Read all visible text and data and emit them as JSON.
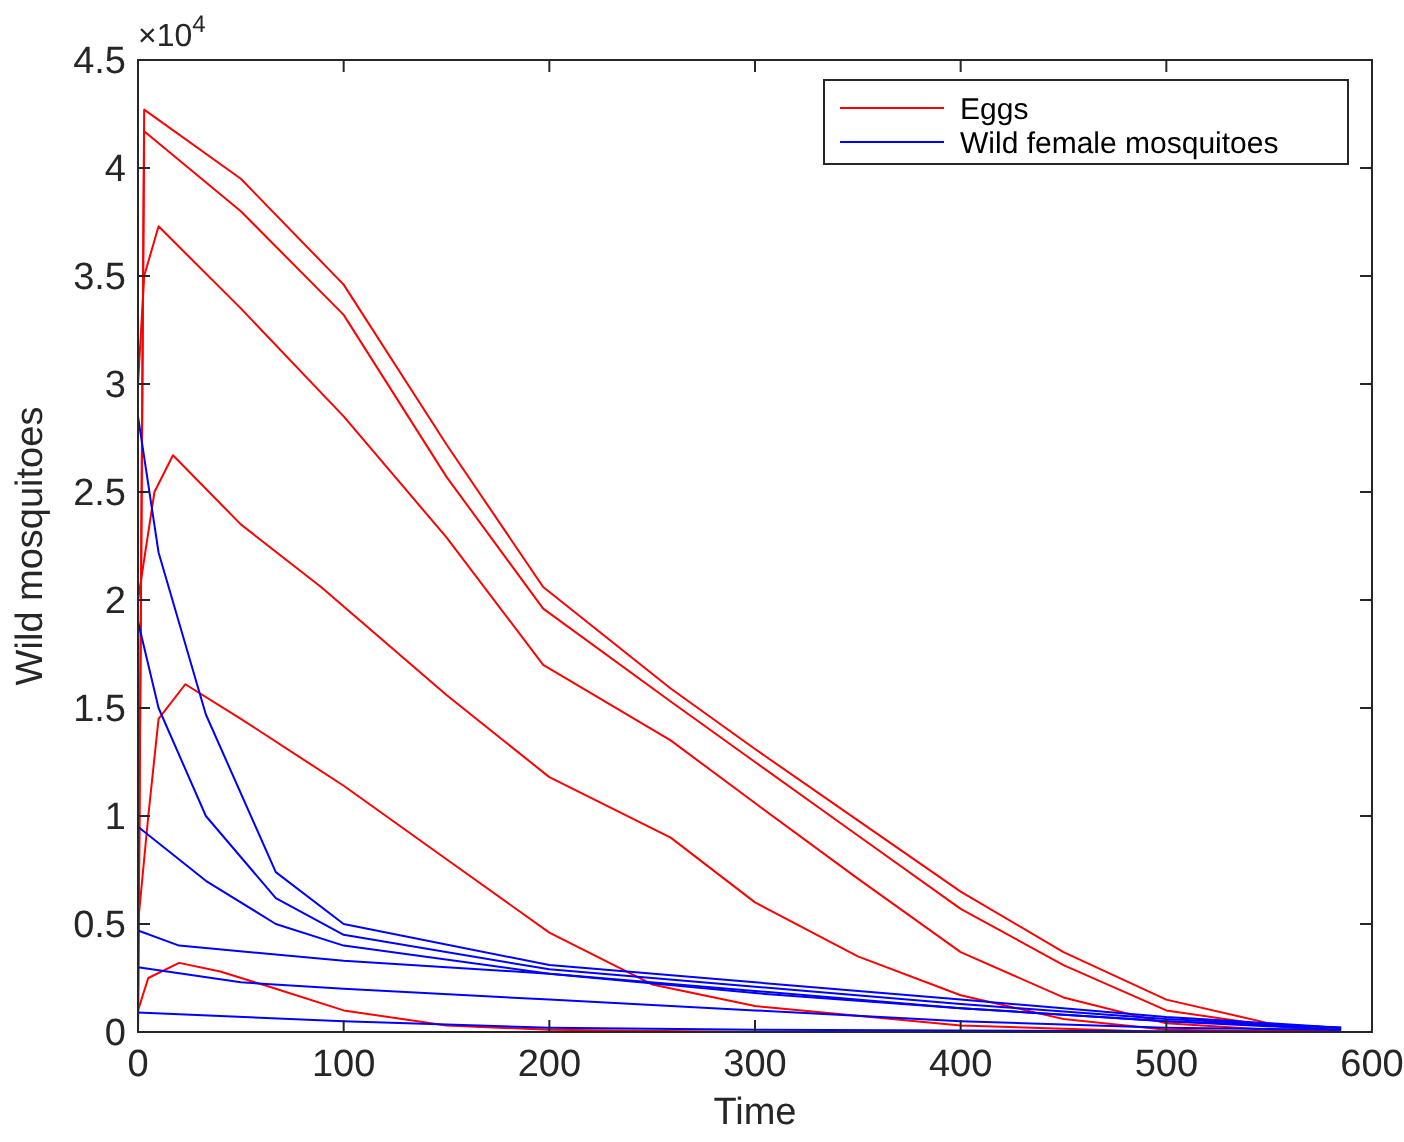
{
  "chart_data": {
    "type": "line",
    "xlabel": "Time",
    "ylabel": "Wild mosquitoes",
    "annotations": [
      "×10$^{4}$"
    ],
    "xlim": [
      0,
      600
    ],
    "xticks": [
      0,
      100,
      200,
      300,
      400,
      500,
      600
    ],
    "ylim": [
      0,
      4.5
    ],
    "yticks": [
      0,
      0.5,
      1,
      1.5,
      2,
      2.5,
      3,
      3.5,
      4,
      4.5
    ],
    "grid": false,
    "legend": "top right",
    "line_style": "solid",
    "series": [
      {
        "name": "Eggs",
        "color": "#ff0000",
        "x": [
          0,
          3,
          50,
          100,
          150,
          197,
          259,
          300,
          350,
          400,
          450,
          500,
          550,
          585
        ],
        "values": [
          0,
          4.27,
          3.95,
          3.46,
          2.72,
          2.06,
          1.59,
          1.31,
          0.98,
          0.65,
          0.37,
          0.15,
          0.04,
          0
        ]
      },
      {
        "color": "#ff0000",
        "x": [
          0,
          3,
          50,
          100,
          150,
          197,
          259,
          300,
          350,
          400,
          450,
          500,
          550,
          585
        ],
        "values": [
          0,
          4.17,
          3.8,
          3.32,
          2.57,
          1.96,
          1.53,
          1.25,
          0.91,
          0.57,
          0.31,
          0.1,
          0.03,
          0
        ]
      },
      {
        "color": "#ff0000",
        "x": [
          0,
          3,
          10,
          50,
          100,
          150,
          197,
          259,
          300,
          350,
          400,
          450,
          500,
          550,
          585
        ],
        "values": [
          3,
          3.5,
          3.73,
          3.35,
          2.85,
          2.29,
          1.7,
          1.35,
          1.06,
          0.71,
          0.37,
          0.16,
          0.04,
          0.01,
          0
        ]
      },
      {
        "color": "#ff0000",
        "x": [
          0,
          8,
          17,
          50,
          89,
          150,
          200,
          259,
          300,
          350,
          400,
          450,
          500,
          585
        ],
        "values": [
          2,
          2.5,
          2.67,
          2.35,
          2.06,
          1.56,
          1.18,
          0.9,
          0.6,
          0.35,
          0.17,
          0.06,
          0.01,
          0
        ]
      },
      {
        "color": "#ff0000",
        "x": [
          0,
          5,
          10,
          23,
          50,
          100,
          150,
          200,
          250,
          300,
          400,
          500,
          585
        ],
        "values": [
          0.5,
          1,
          1.45,
          1.61,
          1.45,
          1.14,
          0.8,
          0.46,
          0.22,
          0.12,
          0.03,
          0,
          0
        ]
      },
      {
        "color": "#ff0000",
        "x": [
          0,
          5,
          20,
          40,
          67,
          100,
          150,
          200,
          300,
          585
        ],
        "values": [
          0.1,
          0.25,
          0.32,
          0.28,
          0.2,
          0.1,
          0.03,
          0.01,
          0,
          0
        ]
      },
      {
        "name": "Wild female mosquitoes",
        "color": "#0000ff",
        "x": [
          0,
          10,
          33,
          67,
          100,
          200,
          300,
          400,
          500,
          585
        ],
        "values": [
          2.85,
          2.22,
          1.47,
          0.74,
          0.5,
          0.31,
          0.23,
          0.15,
          0.07,
          0.02
        ]
      },
      {
        "color": "#0000ff",
        "x": [
          0,
          10,
          33,
          67,
          100,
          200,
          300,
          400,
          500,
          585
        ],
        "values": [
          1.9,
          1.5,
          1,
          0.62,
          0.45,
          0.29,
          0.21,
          0.13,
          0.06,
          0.02
        ]
      },
      {
        "color": "#0000ff",
        "x": [
          0,
          33,
          67,
          100,
          200,
          300,
          400,
          500,
          585
        ],
        "values": [
          0.95,
          0.7,
          0.5,
          0.4,
          0.27,
          0.18,
          0.11,
          0.05,
          0.02
        ]
      },
      {
        "color": "#0000ff",
        "x": [
          0,
          20,
          100,
          200,
          300,
          400,
          500,
          585
        ],
        "values": [
          0.47,
          0.4,
          0.33,
          0.27,
          0.19,
          0.11,
          0.05,
          0.01
        ]
      },
      {
        "color": "#0000ff",
        "x": [
          0,
          50,
          100,
          200,
          300,
          400,
          500,
          585
        ],
        "values": [
          0.3,
          0.23,
          0.2,
          0.15,
          0.1,
          0.05,
          0.02,
          0.01
        ]
      },
      {
        "color": "#0000ff",
        "x": [
          0,
          100,
          200,
          300,
          585
        ],
        "values": [
          0.09,
          0.05,
          0.02,
          0.01,
          0
        ]
      }
    ]
  }
}
